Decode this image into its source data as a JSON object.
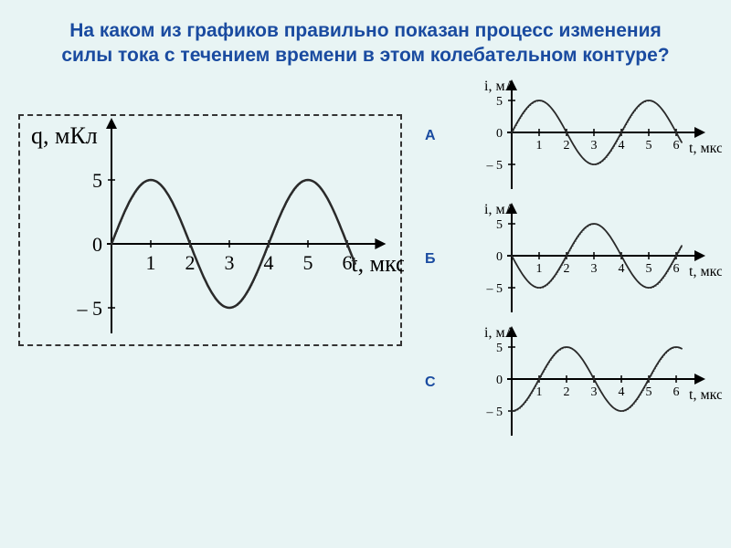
{
  "title": {
    "text": "На каком из графиков правильно показан процесс изменения силы тока с течением времени в этом колебательном контуре?",
    "color": "#1a4ba0"
  },
  "main_chart": {
    "ylabel": "q, мКл",
    "xlabel": "t, мкс",
    "yticks": [
      5,
      0,
      -5
    ],
    "xticks": [
      1,
      2,
      3,
      4,
      5,
      6
    ],
    "xlim": [
      0,
      6.8
    ],
    "ylim": [
      -7,
      10
    ],
    "sine": {
      "amplitude": 5,
      "period": 4,
      "phase": 0,
      "color": "#2a2a2a",
      "stroke_width": 2
    },
    "label_fontsize": 24,
    "tick_fontsize": 20,
    "axis_color": "#000000"
  },
  "option_charts": [
    {
      "letter": "А",
      "letter_color": "#1a4ba0",
      "ylabel": "i, мА",
      "xlabel": "t, мкс",
      "yticks": [
        5,
        0,
        -5
      ],
      "xticks": [
        1,
        2,
        3,
        4,
        5,
        6
      ],
      "sine": {
        "amplitude": 5,
        "period": 4,
        "phase": 0
      }
    },
    {
      "letter": "Б",
      "letter_color": "#1a4ba0",
      "ylabel": "i, мА",
      "xlabel": "t, мкс",
      "yticks": [
        5,
        0,
        -5
      ],
      "xticks": [
        1,
        2,
        3,
        4,
        5,
        6
      ],
      "sine": {
        "amplitude": 5,
        "period": 4,
        "phase": 3.14159
      }
    },
    {
      "letter": "С",
      "letter_color": "#1a4ba0",
      "ylabel": "i, мА",
      "xlabel": "t, мкс",
      "yticks": [
        5,
        0,
        -5
      ],
      "xticks": [
        1,
        2,
        3,
        4,
        5,
        6
      ],
      "sine": {
        "amplitude": 5,
        "period": 4,
        "phase": -1.5708
      }
    }
  ],
  "chart_common": {
    "axis_color": "#000000",
    "curve_color": "#2a2a2a",
    "curve_width": 1.8,
    "bg": "#e8f4f4"
  }
}
